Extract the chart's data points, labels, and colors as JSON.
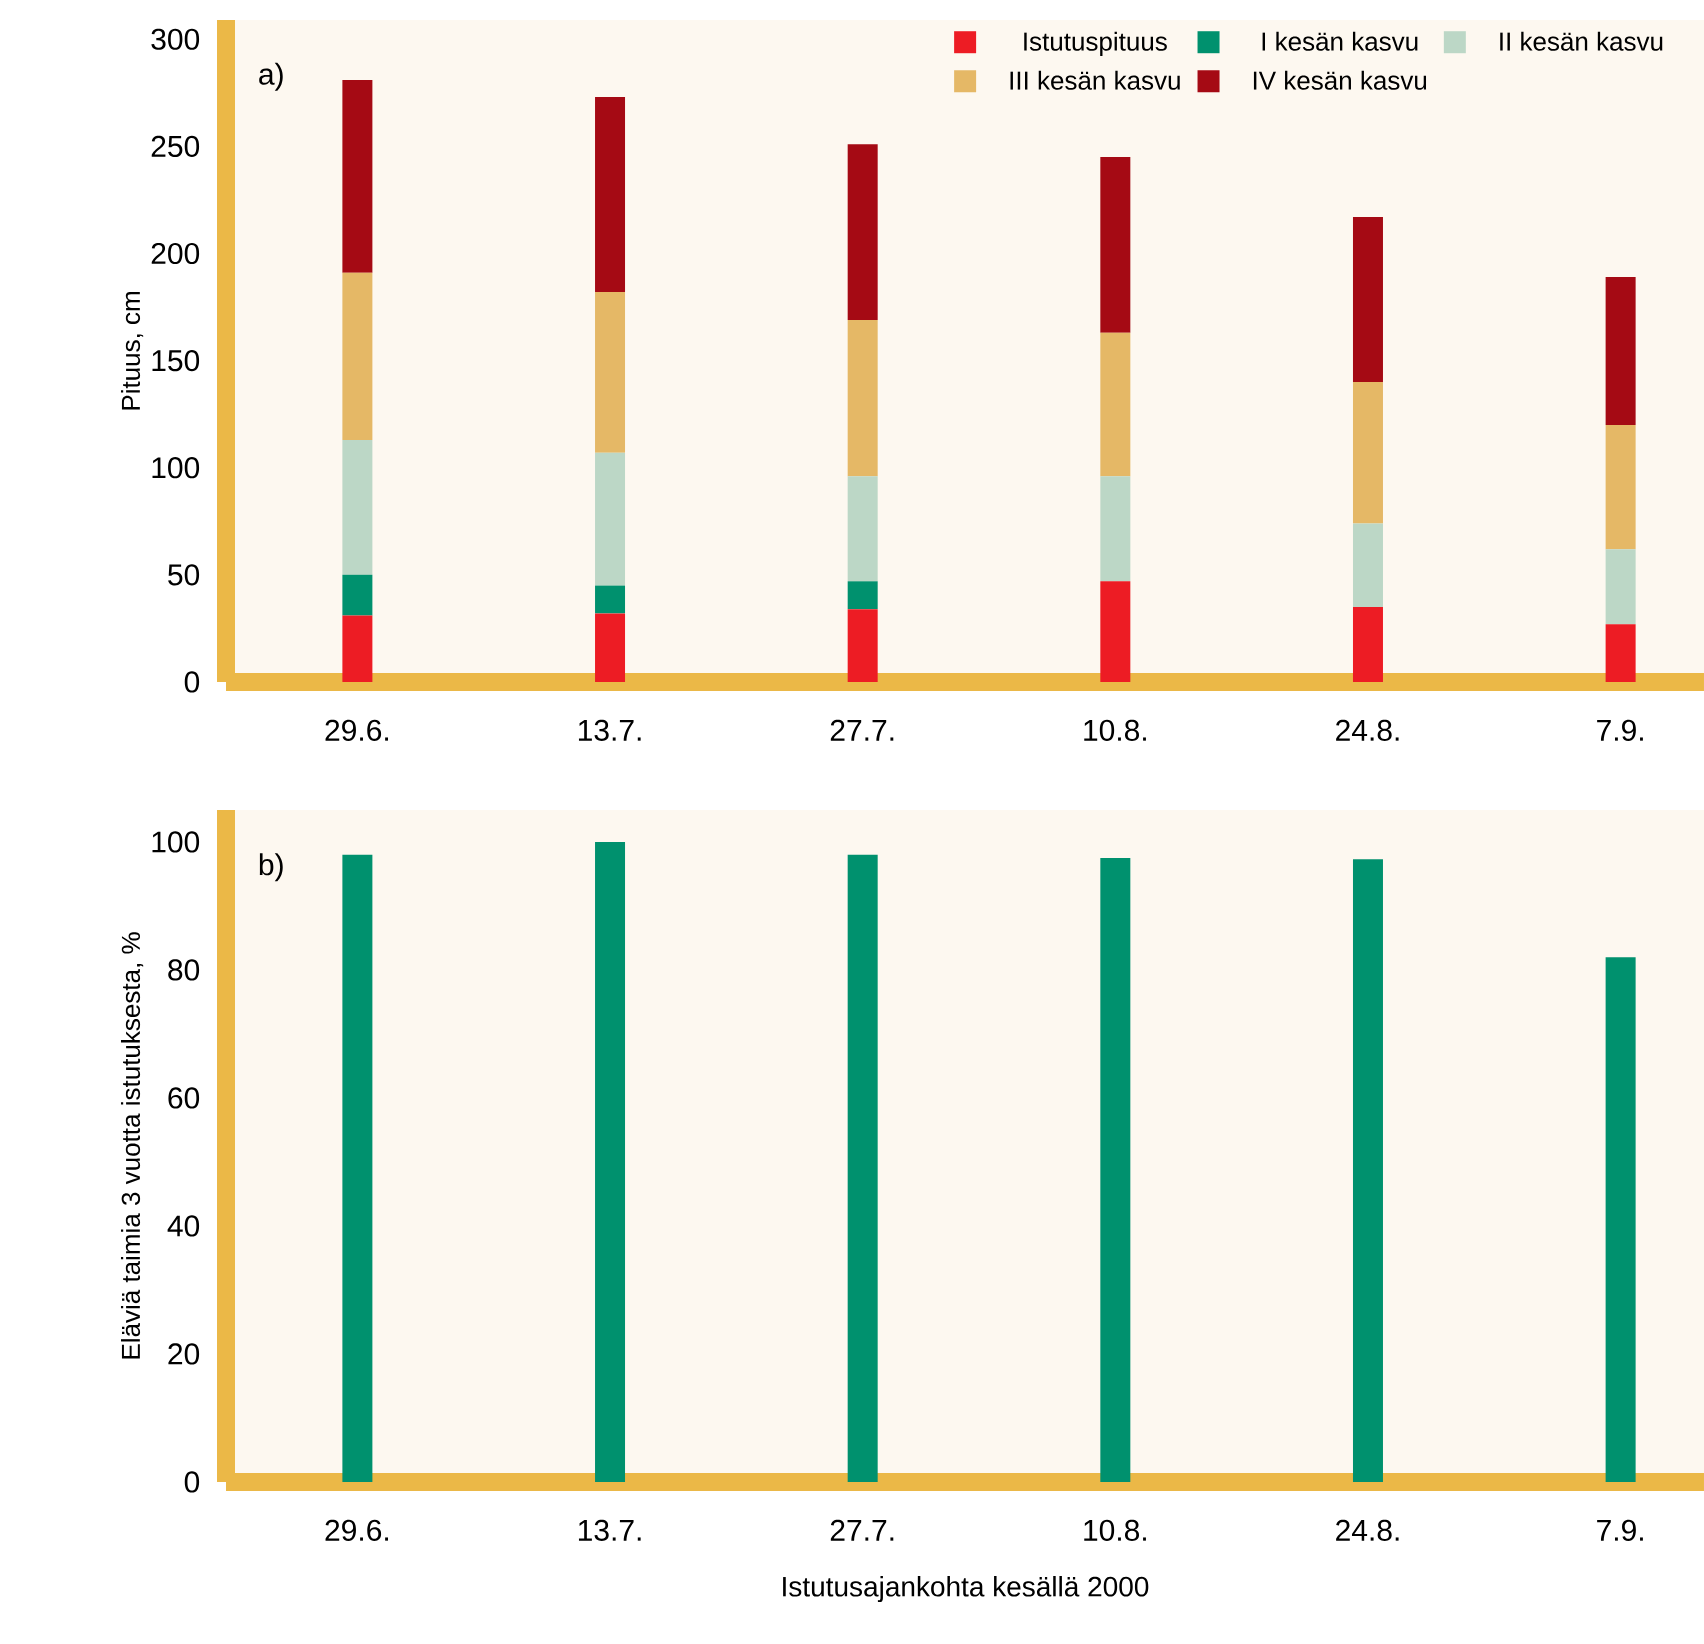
{
  "chart_data": [
    {
      "type": "bar",
      "stacked": true,
      "ylabel": "Pituus, cm",
      "legend": "top right",
      "annotations": [
        "a)"
      ],
      "categories": [
        "29.6.",
        "13.7.",
        "27.7.",
        "10.8.",
        "24.8.",
        "7.9."
      ],
      "ylim": [
        0,
        309
      ],
      "yticks": [
        0,
        50,
        100,
        150,
        200,
        250,
        300
      ],
      "series": [
        {
          "name": "Istutuspituus",
          "color": "#ed1c24",
          "values": [
            31,
            32,
            34,
            47,
            35,
            27
          ]
        },
        {
          "name": "I kesän kasvu",
          "color": "#00916e",
          "values": [
            19,
            13,
            13,
            0,
            0,
            0
          ]
        },
        {
          "name": "II kesän kasvu",
          "color": "#bcd7c6",
          "values": [
            63,
            62,
            49,
            49,
            39,
            35
          ]
        },
        {
          "name": "III kesän kasvu",
          "color": "#e5b866",
          "values": [
            78,
            75,
            73,
            67,
            66,
            58
          ]
        },
        {
          "name": "IV kesän kasvu",
          "color": "#a50a14",
          "values": [
            90,
            91,
            82,
            82,
            77,
            69
          ]
        }
      ]
    },
    {
      "type": "bar",
      "ylabel": "Eläviä taimia 3 vuotta istutuksesta, %",
      "xlabel": "Istutusajankohta kesällä 2000",
      "annotations": [
        "b)"
      ],
      "categories": [
        "29.6.",
        "13.7.",
        "27.7.",
        "10.8.",
        "24.8.",
        "7.9."
      ],
      "ylim": [
        0,
        105
      ],
      "yticks": [
        0,
        20,
        40,
        60,
        80,
        100
      ],
      "values": [
        98,
        100,
        98,
        97.5,
        97.3,
        82
      ],
      "color": "#00916e"
    }
  ]
}
